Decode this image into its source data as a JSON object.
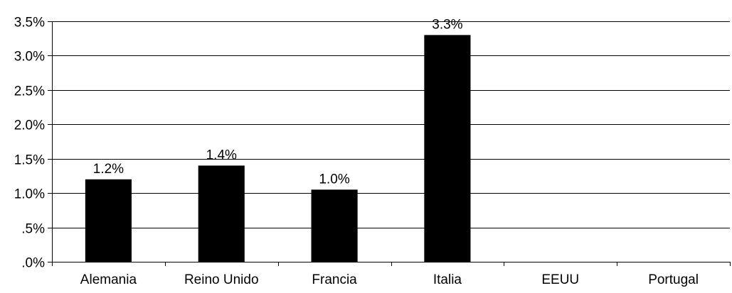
{
  "chart_data": {
    "type": "bar",
    "title": "",
    "xlabel": "",
    "ylabel": "",
    "categories": [
      "Alemania",
      "Reino Unido",
      "Francia",
      "Italia",
      "EEUU",
      "Portugal"
    ],
    "values": [
      1.2,
      1.4,
      1.05,
      3.3,
      null,
      null
    ],
    "data_labels": [
      "1.2%",
      "1.4%",
      "1.0%",
      "3.3%",
      "",
      ""
    ],
    "ylim": [
      0,
      3.5
    ],
    "y_ticks": [
      0,
      0.5,
      1.0,
      1.5,
      2.0,
      2.5,
      3.0,
      3.5
    ],
    "y_tick_labels": [
      ".0%",
      ".5%",
      "1.0%",
      "1.5%",
      "2.0%",
      "2.5%",
      "3.0%",
      "3.5%"
    ],
    "grid": true,
    "legend": "none",
    "colors": {
      "bar": "#000000",
      "grid": "#000000",
      "background": "#ffffff"
    }
  }
}
